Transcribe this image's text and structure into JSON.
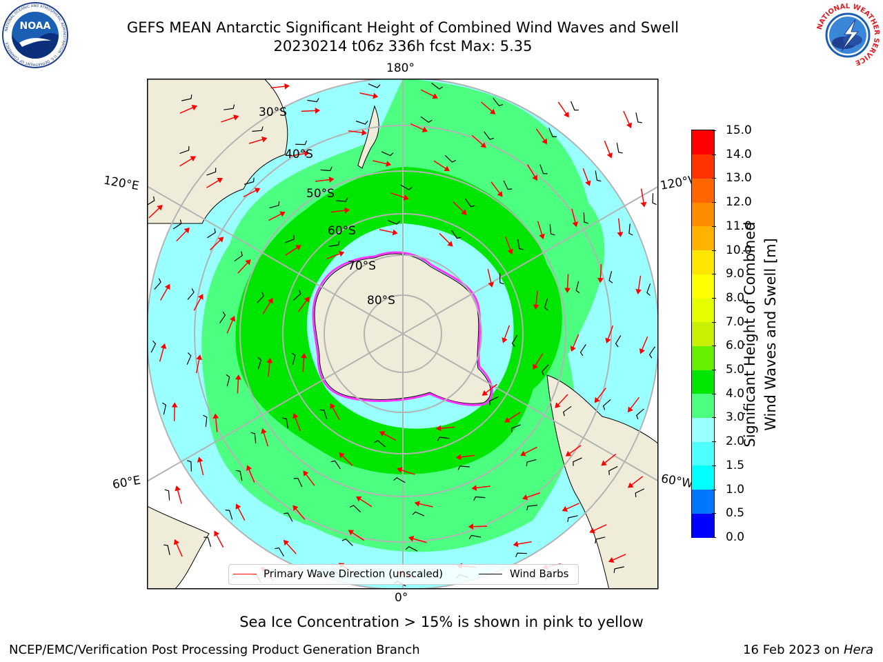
{
  "header": {
    "title_line1": "GEFS MEAN Antarctic Significant Height of Combined Wind Waves and Swell",
    "title_line2": "20230214 t06z 336h fcst   Max: 5.35"
  },
  "logos": {
    "noaa_text": "NOAA",
    "noaa_ring_text": "NATIONAL OCEANIC AND ATMOSPHERIC ADMINISTRATION · U.S. DEPARTMENT OF COMMERCE",
    "nws_ring_text": "NATIONAL WEATHER SERVICE"
  },
  "map": {
    "projection": "south-polar-stereographic",
    "lon_labels": {
      "top": "180°",
      "bottom": "0°",
      "upper_left": "120°E",
      "lower_left": "60°E",
      "upper_right": "120°W",
      "lower_right": "60°W"
    },
    "lat_labels": [
      "30°S",
      "40°S",
      "50°S",
      "60°S",
      "70°S",
      "80°S"
    ],
    "legend": {
      "wave_direction": "Primary Wave Direction (unscaled)",
      "wind_barbs": "Wind Barbs",
      "wave_color": "#ff0000",
      "barb_color": "#000000"
    },
    "colors": {
      "land": "#efedd9",
      "ocean_2_3": "#99ffff",
      "ocean_3_4": "#4dff80",
      "ocean_4_5": "#00e600",
      "ice_edge": "#ff33ff",
      "grid": "#b3b3b3"
    }
  },
  "colorbar": {
    "label": "Significant Height of Combined Wind Waves and Swell [m]",
    "label_line1": "Significant Height of Combined",
    "label_line2": "Wind Waves and Swell [m]",
    "ticks": [
      "0.0",
      "0.5",
      "1.0",
      "1.5",
      "2.0",
      "3.0",
      "4.0",
      "5.0",
      "6.0",
      "7.0",
      "8.0",
      "9.0",
      "10.0",
      "11.0",
      "12.0",
      "13.0",
      "14.0",
      "15.0"
    ],
    "colors": [
      "#0000ff",
      "#0077ff",
      "#00ffff",
      "#4dffff",
      "#99ffff",
      "#4dff80",
      "#00e600",
      "#66f000",
      "#c8f000",
      "#e6ff00",
      "#ffff00",
      "#ffe600",
      "#ffb300",
      "#ff8c00",
      "#ff6600",
      "#ff3300",
      "#ff0000"
    ]
  },
  "note": "Sea Ice Concentration > 15% is shown in pink to yellow",
  "footer": {
    "left": "NCEP/EMC/Verification Post Processing Product Generation Branch",
    "right_date": "16 Feb 2023 on ",
    "right_host": "Hera"
  }
}
